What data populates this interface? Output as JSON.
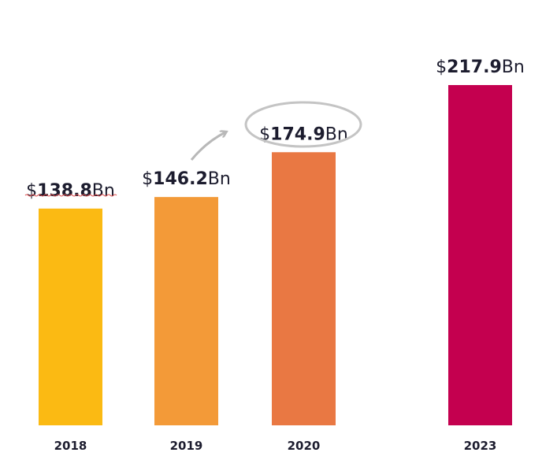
{
  "chart_data": {
    "type": "bar",
    "categories": [
      "2018",
      "2019",
      "2020",
      "2023"
    ],
    "values": [
      138.8,
      146.2,
      174.9,
      217.9
    ],
    "value_labels": [
      {
        "prefix": "$",
        "number": "138.8",
        "suffix": "Bn"
      },
      {
        "prefix": "$",
        "number": "146.2",
        "suffix": "Bn"
      },
      {
        "prefix": "$",
        "number": "174.9",
        "suffix": "Bn"
      },
      {
        "prefix": "$",
        "number": "217.9",
        "suffix": "Bn"
      }
    ],
    "colors": [
      "#FBBA13",
      "#F39A38",
      "#E97843",
      "#C4004F"
    ],
    "highlighted_category": "2020",
    "ylim": [
      0,
      217.9
    ],
    "grid": false,
    "legend": "none",
    "title": "",
    "xlabel": "",
    "ylabel": ""
  }
}
